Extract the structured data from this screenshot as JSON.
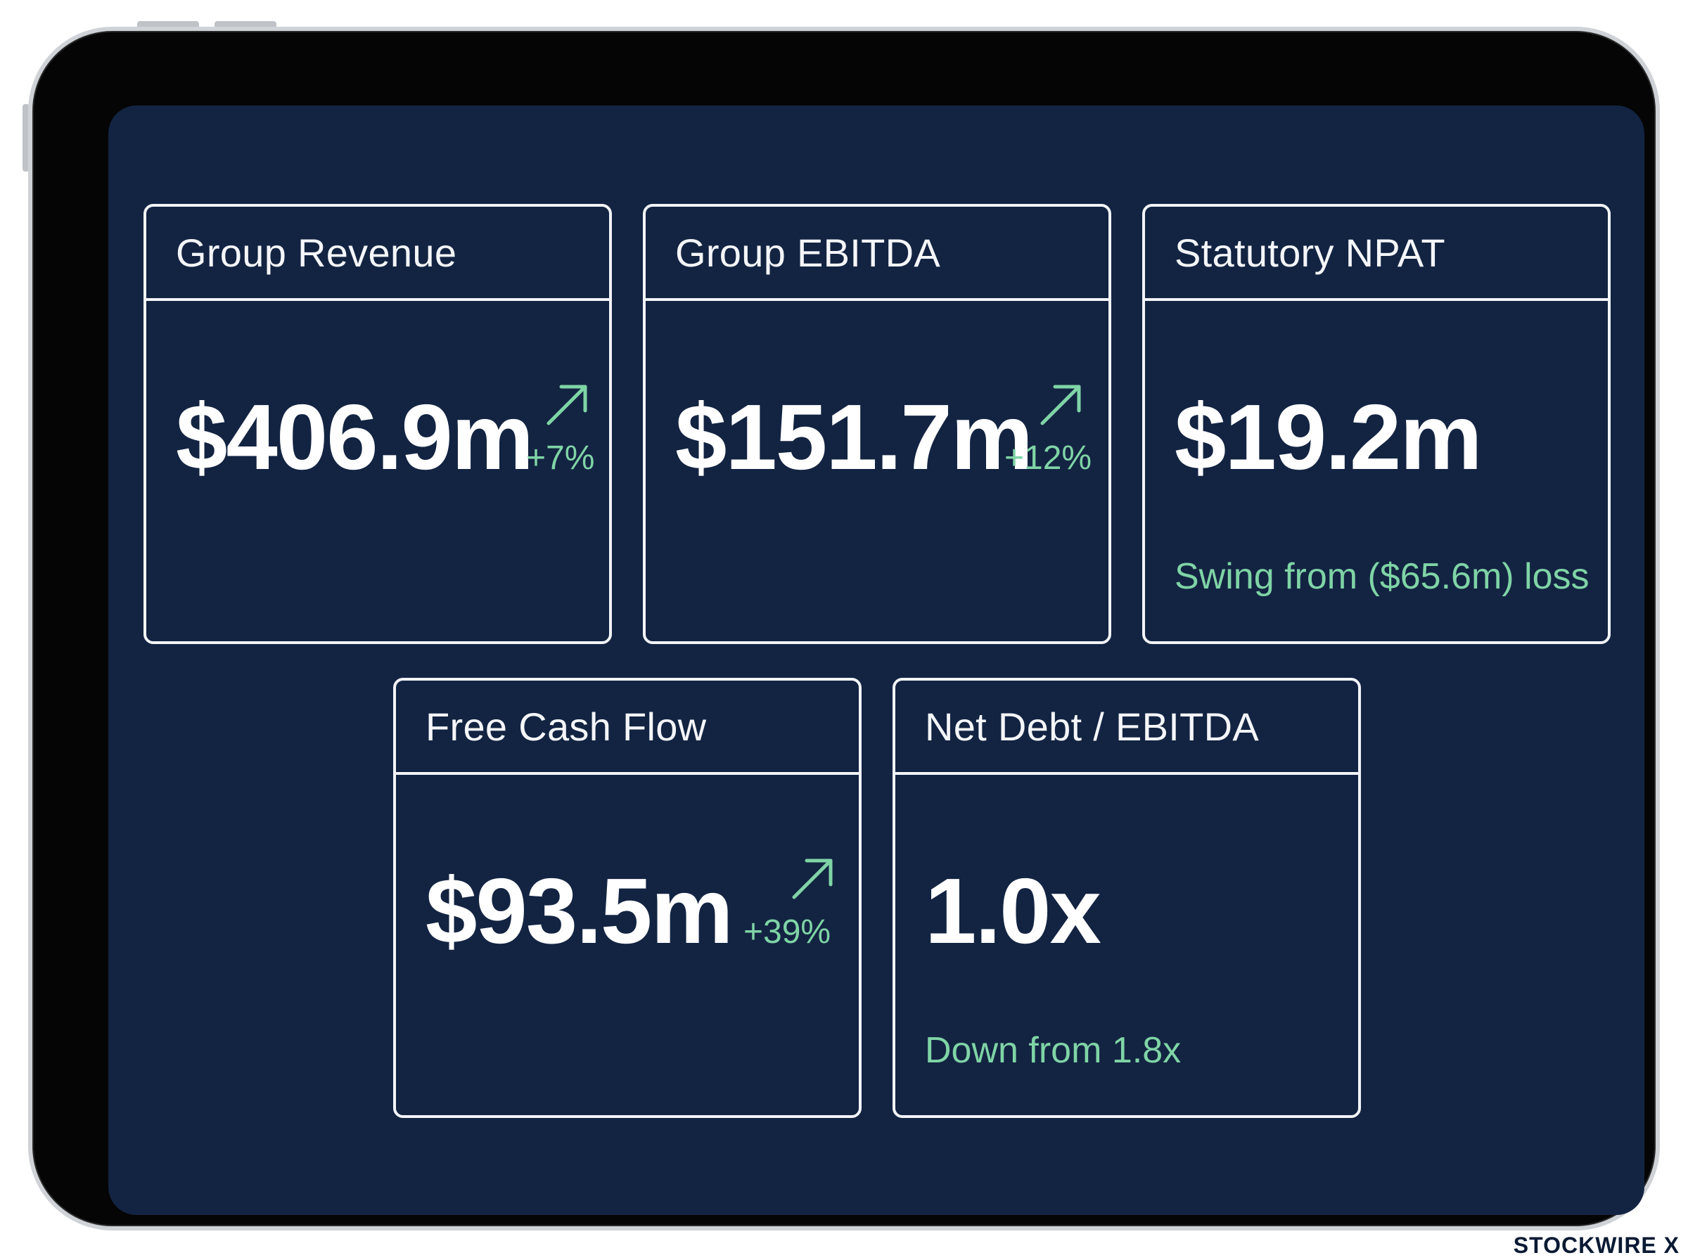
{
  "accent_color": "#7fd4a6",
  "screen_background": "#132442",
  "cards": [
    {
      "title": "Group Revenue",
      "value": "$406.9m",
      "change": "+7%",
      "icon": "trend-up-arrow-icon"
    },
    {
      "title": "Group EBITDA",
      "value": "$151.7m",
      "change": "+12%",
      "icon": "trend-up-arrow-icon"
    },
    {
      "title": "Statutory NPAT",
      "value": "$19.2m",
      "note": "Swing from ($65.6m) loss"
    },
    {
      "title": "Free Cash Flow",
      "value": "$93.5m",
      "change": "+39%",
      "icon": "trend-up-arrow-icon"
    },
    {
      "title": "Net Debt / EBITDA",
      "value": "1.0x",
      "note": "Down from 1.8x"
    }
  ],
  "brand": {
    "name": "STOCKWIRE X"
  }
}
